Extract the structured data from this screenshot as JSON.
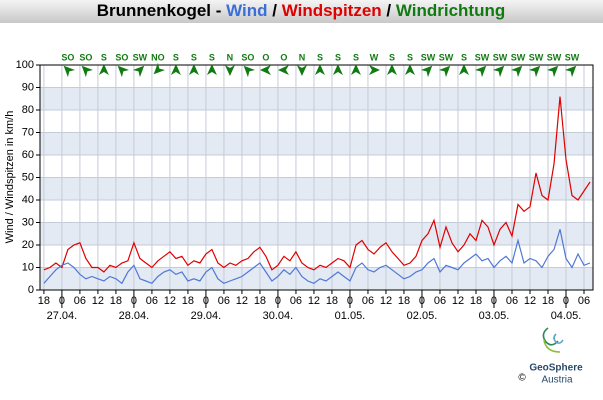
{
  "chart_data": {
    "type": "line",
    "title_parts": [
      {
        "text": "Brunnenkogel - ",
        "color": "#000000"
      },
      {
        "text": "Wind",
        "color": "#3a6fd8"
      },
      {
        "text": " / ",
        "color": "#000000"
      },
      {
        "text": "Windspitzen",
        "color": "#e00000"
      },
      {
        "text": " / ",
        "color": "#000000"
      },
      {
        "text": "Windrichtung",
        "color": "#137a13"
      }
    ],
    "ylabel": "Wind / Windspitzen in km/h",
    "ylim": [
      0,
      100
    ],
    "yticks": [
      0,
      10,
      20,
      30,
      40,
      50,
      60,
      70,
      80,
      90,
      100
    ],
    "xlim": [
      -1.3,
      183
    ],
    "xticks": [
      {
        "value": 0,
        "label": "18"
      },
      {
        "value": 6,
        "label": "0"
      },
      {
        "value": 12,
        "label": "06"
      },
      {
        "value": 18,
        "label": "12"
      },
      {
        "value": 24,
        "label": "18"
      },
      {
        "value": 30,
        "label": "0"
      },
      {
        "value": 36,
        "label": "06"
      },
      {
        "value": 42,
        "label": "12"
      },
      {
        "value": 48,
        "label": "18"
      },
      {
        "value": 54,
        "label": "0"
      },
      {
        "value": 60,
        "label": "06"
      },
      {
        "value": 66,
        "label": "12"
      },
      {
        "value": 72,
        "label": "18"
      },
      {
        "value": 78,
        "label": "0"
      },
      {
        "value": 84,
        "label": "06"
      },
      {
        "value": 90,
        "label": "12"
      },
      {
        "value": 96,
        "label": "18"
      },
      {
        "value": 102,
        "label": "0"
      },
      {
        "value": 108,
        "label": "06"
      },
      {
        "value": 114,
        "label": "12"
      },
      {
        "value": 120,
        "label": "18"
      },
      {
        "value": 126,
        "label": "0"
      },
      {
        "value": 132,
        "label": "06"
      },
      {
        "value": 138,
        "label": "12"
      },
      {
        "value": 144,
        "label": "18"
      },
      {
        "value": 150,
        "label": "0"
      },
      {
        "value": 156,
        "label": "06"
      },
      {
        "value": 162,
        "label": "12"
      },
      {
        "value": 168,
        "label": "18"
      },
      {
        "value": 174,
        "label": "0"
      },
      {
        "value": 180,
        "label": "06"
      }
    ],
    "xdates": [
      {
        "value": 6,
        "label": "27.04."
      },
      {
        "value": 30,
        "label": "28.04."
      },
      {
        "value": 54,
        "label": "29.04."
      },
      {
        "value": 78,
        "label": "30.04."
      },
      {
        "value": 102,
        "label": "01.05."
      },
      {
        "value": 126,
        "label": "02.05."
      },
      {
        "value": 150,
        "label": "03.05."
      },
      {
        "value": 174,
        "label": "04.05."
      }
    ],
    "grid": true,
    "directions_x": [
      8,
      14,
      20,
      26,
      32,
      38,
      44,
      50,
      56,
      62,
      68,
      74,
      80,
      86,
      92,
      98,
      104,
      110,
      116,
      122,
      128,
      134,
      140,
      146,
      152,
      158,
      164,
      170,
      176
    ],
    "directions": [
      {
        "value": 135,
        "label": "SO"
      },
      {
        "value": 135,
        "label": "SO"
      },
      {
        "value": 180,
        "label": "S"
      },
      {
        "value": 135,
        "label": "SO"
      },
      {
        "value": 225,
        "label": "SW"
      },
      {
        "value": 45,
        "label": "NO"
      },
      {
        "value": 180,
        "label": "S"
      },
      {
        "value": 180,
        "label": "S"
      },
      {
        "value": 180,
        "label": "S"
      },
      {
        "value": 0,
        "label": "N"
      },
      {
        "value": 135,
        "label": "SO"
      },
      {
        "value": 90,
        "label": "O"
      },
      {
        "value": 90,
        "label": "O"
      },
      {
        "value": 0,
        "label": "N"
      },
      {
        "value": 180,
        "label": "S"
      },
      {
        "value": 180,
        "label": "S"
      },
      {
        "value": 180,
        "label": "S"
      },
      {
        "value": 270,
        "label": "W"
      },
      {
        "value": 180,
        "label": "S"
      },
      {
        "value": 180,
        "label": "S"
      },
      {
        "value": 225,
        "label": "SW"
      },
      {
        "value": 225,
        "label": "SW"
      },
      {
        "value": 180,
        "label": "S"
      },
      {
        "value": 225,
        "label": "SW"
      },
      {
        "value": 225,
        "label": "SW"
      },
      {
        "value": 225,
        "label": "SW"
      },
      {
        "value": 225,
        "label": "SW"
      },
      {
        "value": 225,
        "label": "SW"
      },
      {
        "value": 225,
        "label": "SW"
      }
    ],
    "direction_color": "#137a13",
    "x": [
      0,
      2,
      4,
      6,
      8,
      10,
      12,
      14,
      16,
      18,
      20,
      22,
      24,
      26,
      28,
      30,
      32,
      34,
      36,
      38,
      40,
      42,
      44,
      46,
      48,
      50,
      52,
      54,
      56,
      58,
      60,
      62,
      64,
      66,
      68,
      70,
      72,
      74,
      76,
      78,
      80,
      82,
      84,
      86,
      88,
      90,
      92,
      94,
      96,
      98,
      100,
      102,
      104,
      106,
      108,
      110,
      112,
      114,
      116,
      118,
      120,
      122,
      124,
      126,
      128,
      130,
      132,
      134,
      136,
      138,
      140,
      142,
      144,
      146,
      148,
      150,
      152,
      154,
      156,
      158,
      160,
      162,
      164,
      166,
      168,
      170,
      172,
      174,
      176,
      178,
      180,
      182
    ],
    "series": [
      {
        "name": "Windspitzen",
        "color": "#e00000",
        "values": [
          9,
          10,
          12,
          10,
          18,
          20,
          21,
          14,
          10,
          10,
          8,
          11,
          10,
          12,
          13,
          21,
          14,
          12,
          10,
          13,
          15,
          17,
          14,
          15,
          11,
          13,
          12,
          16,
          18,
          12,
          10,
          12,
          11,
          13,
          14,
          17,
          19,
          15,
          9,
          11,
          15,
          13,
          17,
          12,
          10,
          9,
          11,
          10,
          12,
          14,
          13,
          10,
          20,
          22,
          18,
          16,
          19,
          21,
          17,
          14,
          11,
          12,
          15,
          22,
          25,
          31,
          19,
          28,
          21,
          17,
          20,
          25,
          22,
          31,
          28,
          20,
          27,
          30,
          24,
          38,
          35,
          37,
          52,
          42,
          40,
          56,
          86,
          58,
          42,
          40,
          44,
          48
        ]
      },
      {
        "name": "Wind",
        "color": "#4f78d6",
        "values": [
          3,
          6,
          9,
          11,
          12,
          10,
          7,
          5,
          6,
          5,
          4,
          6,
          5,
          3,
          8,
          11,
          5,
          4,
          3,
          6,
          8,
          9,
          7,
          8,
          4,
          5,
          4,
          8,
          10,
          5,
          3,
          4,
          5,
          6,
          8,
          10,
          12,
          8,
          4,
          6,
          9,
          7,
          10,
          6,
          4,
          3,
          5,
          4,
          6,
          8,
          6,
          4,
          10,
          12,
          9,
          8,
          10,
          11,
          9,
          7,
          5,
          6,
          8,
          9,
          12,
          14,
          8,
          11,
          10,
          9,
          12,
          14,
          16,
          13,
          14,
          10,
          13,
          15,
          12,
          22,
          12,
          14,
          13,
          10,
          15,
          18,
          27,
          14,
          10,
          16,
          11,
          12
        ]
      }
    ],
    "logo": {
      "name": "GeoSphere",
      "sub": "Austria",
      "copyright": "©"
    }
  }
}
